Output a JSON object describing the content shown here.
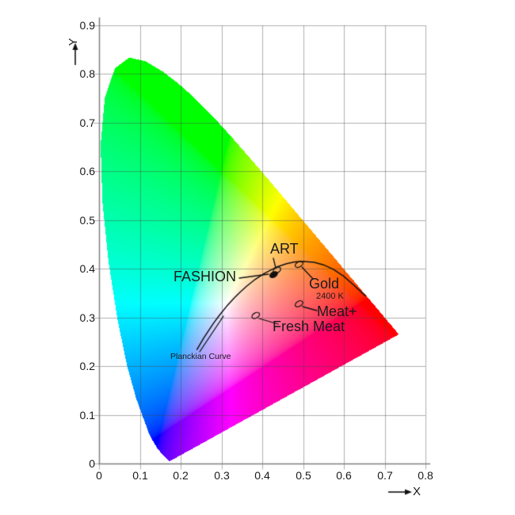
{
  "chart_data": {
    "type": "scatter",
    "diagram": "CIE 1931 xy chromaticity diagram",
    "title": "",
    "xlabel": "X",
    "ylabel": "Y",
    "xlim": [
      0,
      0.8
    ],
    "ylim": [
      0,
      0.9
    ],
    "grid": true,
    "x_ticks": [
      "0",
      "0.1",
      "0.2",
      "0.3",
      "0.4",
      "0.5",
      "0.6",
      "0.7",
      "0.8"
    ],
    "y_ticks": [
      "0",
      "0.1",
      "0.2",
      "0.3",
      "0.4",
      "0.5",
      "0.6",
      "0.7",
      "0.8",
      "0.9"
    ],
    "colors": {
      "curve": "#111111",
      "grid": "#9b9b9b",
      "axis": "#808080",
      "text": "#1a1a1a",
      "background": "#ffffff"
    },
    "points": [
      {
        "label": "FASHION",
        "x": 0.428,
        "y": 0.388,
        "marker": "ellipse-filled"
      },
      {
        "label": "ART",
        "x": 0.436,
        "y": 0.397,
        "marker": "ellipse-open"
      },
      {
        "label": "Gold",
        "sublabel": "2400 K",
        "x": 0.49,
        "y": 0.409,
        "marker": "ellipse-open"
      },
      {
        "label": "Meat+",
        "x": 0.49,
        "y": 0.328,
        "marker": "ellipse-open"
      },
      {
        "label": "Fresh Meat",
        "x": 0.384,
        "y": 0.304,
        "marker": "ellipse-open"
      }
    ],
    "planckian_curve": {
      "label": "Planckian Curve",
      "points": [
        [
          0.24,
          0.234
        ],
        [
          0.2565,
          0.2577
        ],
        [
          0.2806,
          0.2883
        ],
        [
          0.2952,
          0.3048
        ],
        [
          0.3135,
          0.3237
        ],
        [
          0.3324,
          0.341
        ],
        [
          0.3452,
          0.3516
        ],
        [
          0.3611,
          0.3638
        ],
        [
          0.3805,
          0.3768
        ],
        [
          0.4059,
          0.3907
        ],
        [
          0.4369,
          0.4041
        ],
        [
          0.4599,
          0.4106
        ],
        [
          0.4803,
          0.4141
        ],
        [
          0.5004,
          0.4152
        ],
        [
          0.5267,
          0.4133
        ],
        [
          0.5498,
          0.4082
        ],
        [
          0.574,
          0.399
        ],
        [
          0.599,
          0.385
        ],
        [
          0.623,
          0.3675
        ],
        [
          0.6528,
          0.3444
        ]
      ]
    },
    "spectral_locus": [
      [
        0.1741,
        0.005
      ],
      [
        0.174,
        0.005
      ],
      [
        0.1733,
        0.0048
      ],
      [
        0.1726,
        0.0048
      ],
      [
        0.1714,
        0.0051
      ],
      [
        0.1689,
        0.0069
      ],
      [
        0.1644,
        0.0109
      ],
      [
        0.1566,
        0.0177
      ],
      [
        0.144,
        0.0297
      ],
      [
        0.1241,
        0.0578
      ],
      [
        0.0913,
        0.1327
      ],
      [
        0.0687,
        0.2007
      ],
      [
        0.0454,
        0.295
      ],
      [
        0.0235,
        0.4127
      ],
      [
        0.0082,
        0.5384
      ],
      [
        0.0039,
        0.6548
      ],
      [
        0.0139,
        0.7502
      ],
      [
        0.0389,
        0.812
      ],
      [
        0.0743,
        0.8338
      ],
      [
        0.1142,
        0.8262
      ],
      [
        0.1547,
        0.8059
      ],
      [
        0.1929,
        0.7816
      ],
      [
        0.2296,
        0.7543
      ],
      [
        0.2658,
        0.7243
      ],
      [
        0.3016,
        0.6923
      ],
      [
        0.3373,
        0.6588
      ],
      [
        0.3731,
        0.6245
      ],
      [
        0.4087,
        0.5896
      ],
      [
        0.4441,
        0.5547
      ],
      [
        0.4784,
        0.5203
      ],
      [
        0.5125,
        0.4866
      ],
      [
        0.5448,
        0.4544
      ],
      [
        0.5752,
        0.4242
      ],
      [
        0.6029,
        0.3965
      ],
      [
        0.627,
        0.3725
      ],
      [
        0.6482,
        0.3514
      ],
      [
        0.6658,
        0.334
      ],
      [
        0.6801,
        0.3197
      ],
      [
        0.6915,
        0.3083
      ],
      [
        0.7079,
        0.292
      ],
      [
        0.719,
        0.2809
      ],
      [
        0.726,
        0.274
      ],
      [
        0.732,
        0.268
      ],
      [
        0.7347,
        0.2653
      ]
    ]
  }
}
